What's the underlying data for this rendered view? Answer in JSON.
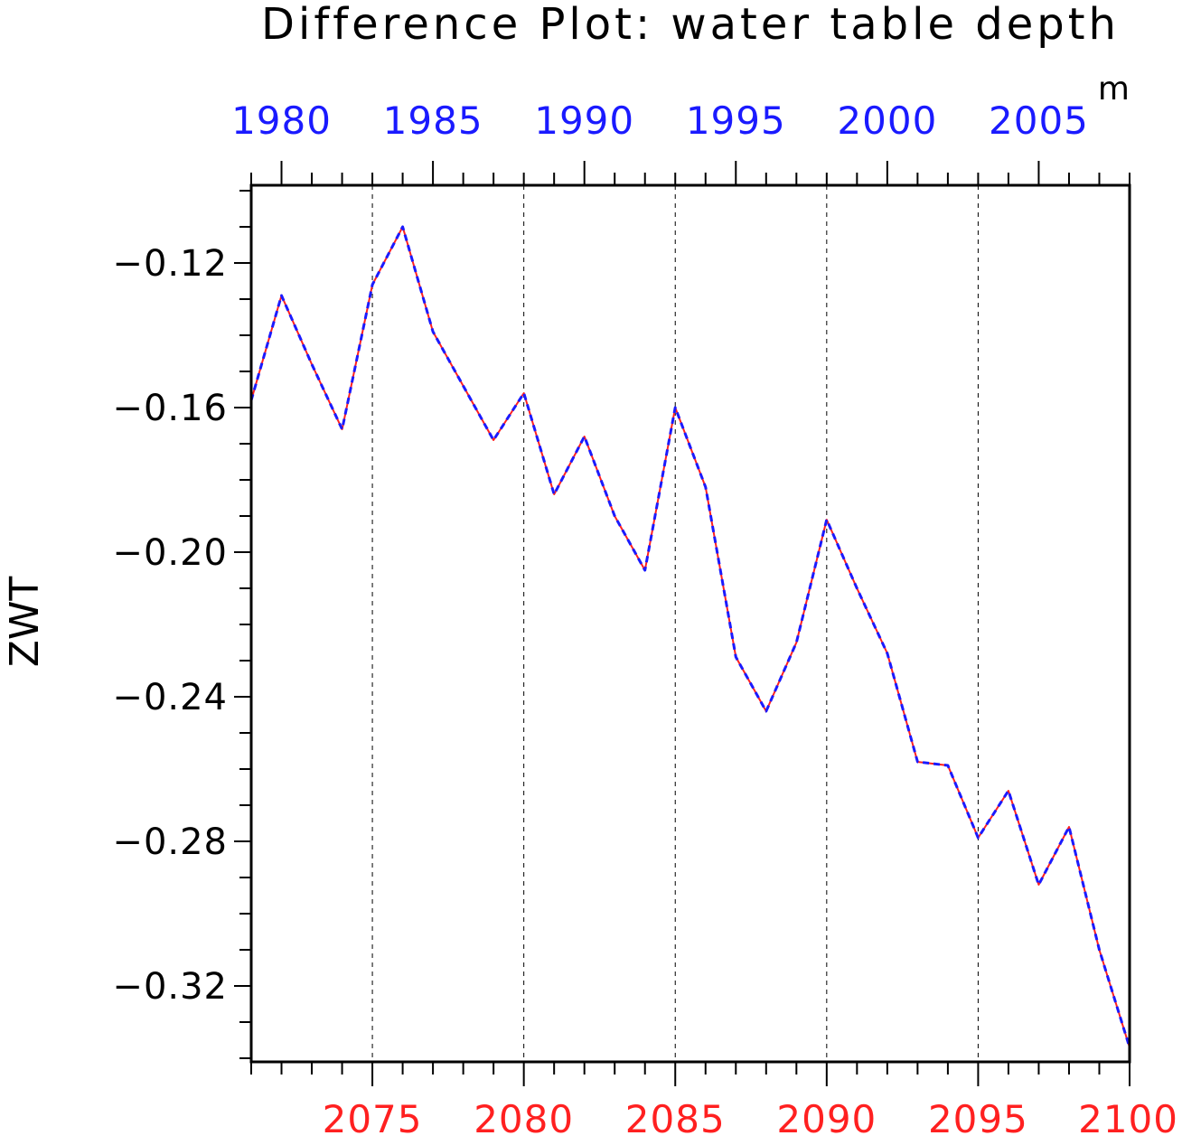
{
  "chart_data": {
    "type": "line",
    "title": "Difference Plot: water table depth",
    "units": "m",
    "ylabel": "ZWT",
    "ylim": [
      -0.341,
      -0.0985
    ],
    "yticks": [
      -0.12,
      -0.16,
      -0.2,
      -0.24,
      -0.28,
      -0.32
    ],
    "ytick_labels": [
      "−0.12",
      "−0.16",
      "−0.20",
      "−0.24",
      "−0.28",
      "−0.32"
    ],
    "x_bottom": {
      "range": [
        2071,
        2100
      ],
      "ticks": [
        2075,
        2080,
        2085,
        2090,
        2095,
        2100
      ],
      "tick_labels": [
        "2075",
        "2080",
        "2085",
        "2090",
        "2095",
        "2100"
      ],
      "color": "#ff2020"
    },
    "x_top": {
      "range": [
        1979,
        2008
      ],
      "ticks": [
        1980,
        1985,
        1990,
        1995,
        2000,
        2005
      ],
      "tick_labels": [
        "1980",
        "1985",
        "1990",
        "1995",
        "2000",
        "2005"
      ],
      "color": "#1a1aff"
    },
    "grid": "vertical dashed at major x ticks",
    "x": [
      2071,
      2072,
      2073,
      2074,
      2075,
      2076,
      2077,
      2078,
      2079,
      2080,
      2081,
      2082,
      2083,
      2084,
      2085,
      2086,
      2087,
      2088,
      2089,
      2090,
      2091,
      2092,
      2093,
      2094,
      2095,
      2096,
      2097,
      2098,
      2099,
      2100
    ],
    "series": [
      {
        "axis": "bottom",
        "color": "#ff2020",
        "style": "solid",
        "values": [
          -0.158,
          -0.129,
          -0.148,
          -0.166,
          -0.126,
          -0.11,
          -0.139,
          -0.154,
          -0.169,
          -0.156,
          -0.184,
          -0.168,
          -0.19,
          -0.205,
          -0.16,
          -0.182,
          -0.229,
          -0.244,
          -0.225,
          -0.191,
          -0.21,
          -0.228,
          -0.258,
          -0.259,
          -0.279,
          -0.266,
          -0.292,
          -0.276,
          -0.31,
          -0.337
        ]
      },
      {
        "axis": "top",
        "color": "#1a1aff",
        "style": "dashed",
        "values": [
          -0.158,
          -0.129,
          -0.148,
          -0.166,
          -0.126,
          -0.11,
          -0.139,
          -0.154,
          -0.169,
          -0.156,
          -0.184,
          -0.168,
          -0.19,
          -0.205,
          -0.16,
          -0.182,
          -0.229,
          -0.244,
          -0.225,
          -0.191,
          -0.21,
          -0.228,
          -0.258,
          -0.259,
          -0.279,
          -0.266,
          -0.292,
          -0.276,
          -0.31,
          -0.337
        ]
      }
    ]
  }
}
